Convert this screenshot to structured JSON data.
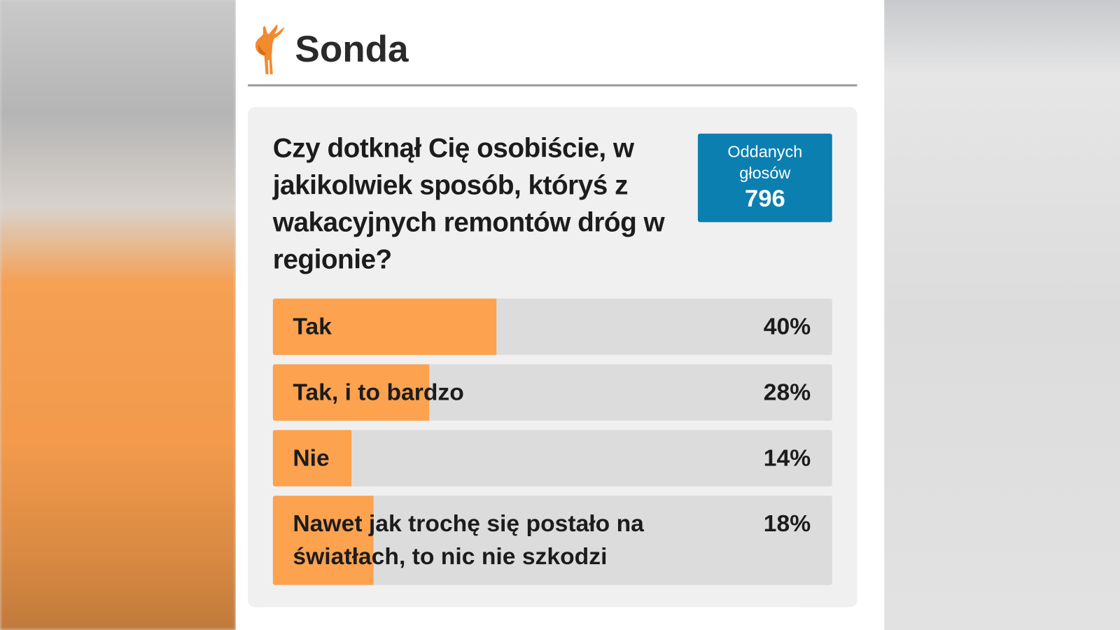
{
  "header": {
    "title": "Sonda"
  },
  "poll": {
    "question": "Czy dotknął Cię osobiście, w jakikolwiek sposób, któryś z wakacyjnych remontów dróg w regionie?",
    "votes_label": "Oddanych głosów",
    "votes_count": 796,
    "options": [
      {
        "label": "Tak",
        "value": 40,
        "value_label": "40%"
      },
      {
        "label": "Tak, i to bardzo",
        "value": 28,
        "value_label": "28%"
      },
      {
        "label": "Nie",
        "value": 14,
        "value_label": "14%"
      },
      {
        "label": "Nawet jak trochę się postało na światłach, to nic nie szkodzi",
        "value": 18,
        "value_label": "18%"
      }
    ]
  }
}
